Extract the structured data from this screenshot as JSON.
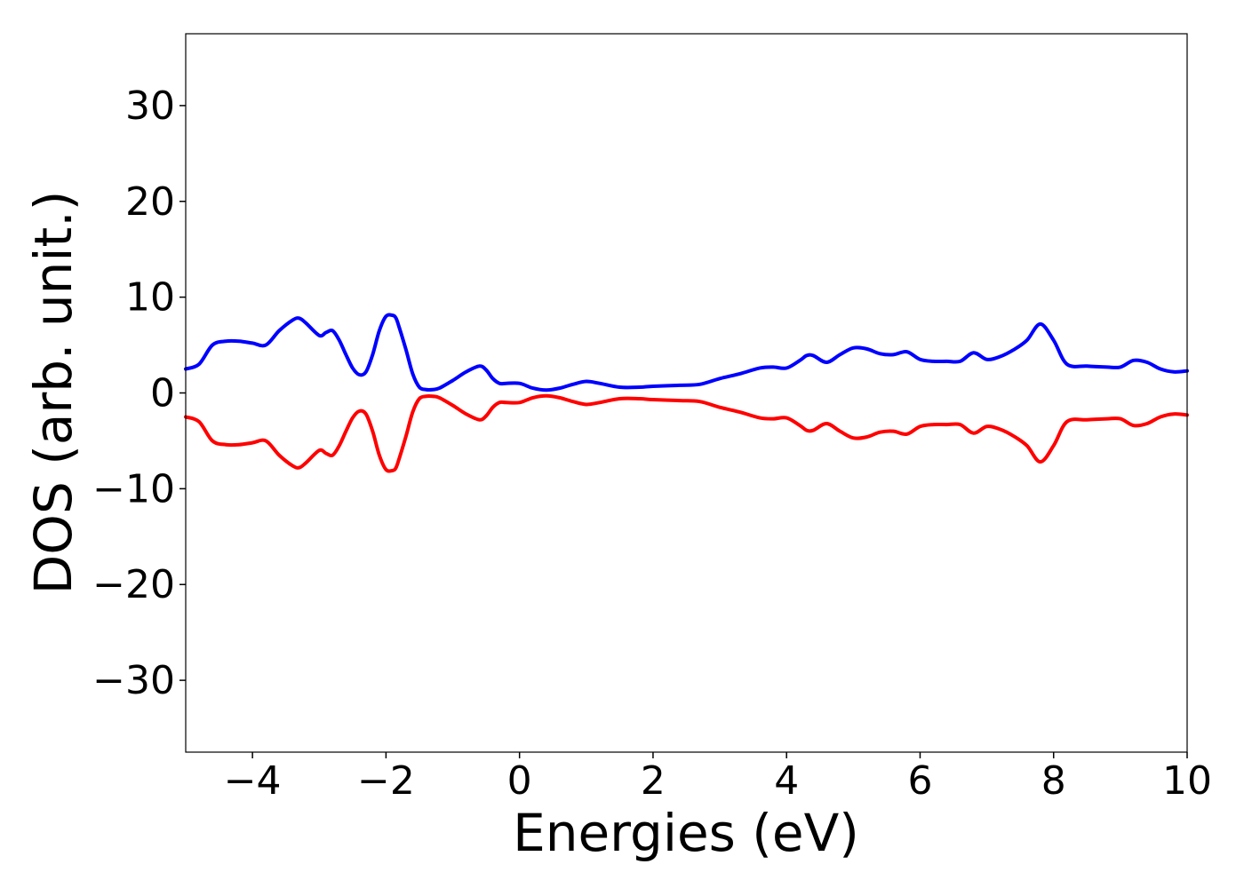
{
  "chart_data": {
    "type": "line",
    "xlabel": "Energies (eV)",
    "ylabel": "DOS (arb. unit.)",
    "xlim": [
      -5,
      10
    ],
    "ylim": [
      -37.5,
      37.5
    ],
    "xticks": [
      -4,
      -2,
      0,
      2,
      4,
      6,
      8,
      10
    ],
    "yticks": [
      -30,
      -20,
      -10,
      0,
      10,
      20,
      30
    ],
    "xtick_labels": [
      "−4",
      "−2",
      "0",
      "2",
      "4",
      "6",
      "8",
      "10"
    ],
    "ytick_labels": [
      "−30",
      "−20",
      "−10",
      "0",
      "10",
      "20",
      "30"
    ],
    "grid": false,
    "series": [
      {
        "color": "#0000ff",
        "x": [
          -5.0,
          -4.8,
          -4.6,
          -4.4,
          -4.2,
          -4.0,
          -3.8,
          -3.6,
          -3.4,
          -3.3,
          -3.2,
          -3.0,
          -2.9,
          -2.8,
          -2.7,
          -2.6,
          -2.5,
          -2.4,
          -2.3,
          -2.2,
          -2.1,
          -2.0,
          -1.9,
          -1.85,
          -1.8,
          -1.7,
          -1.6,
          -1.5,
          -1.4,
          -1.3,
          -1.2,
          -1.0,
          -0.8,
          -0.6,
          -0.5,
          -0.4,
          -0.3,
          -0.2,
          0.0,
          0.2,
          0.4,
          0.6,
          0.8,
          1.0,
          1.2,
          1.5,
          1.8,
          2.0,
          2.4,
          2.7,
          3.0,
          3.3,
          3.6,
          3.8,
          4.0,
          4.2,
          4.3,
          4.4,
          4.6,
          4.8,
          5.0,
          5.2,
          5.4,
          5.6,
          5.8,
          6.0,
          6.2,
          6.4,
          6.6,
          6.8,
          7.0,
          7.2,
          7.4,
          7.6,
          7.8,
          8.0,
          8.2,
          8.5,
          8.8,
          9.0,
          9.2,
          9.4,
          9.6,
          9.8,
          10.0
        ],
        "y": [
          2.5,
          3.0,
          5.0,
          5.4,
          5.4,
          5.2,
          5.0,
          6.5,
          7.6,
          7.8,
          7.3,
          6.0,
          6.3,
          6.5,
          5.5,
          4.0,
          2.6,
          1.9,
          2.2,
          4.0,
          6.5,
          8.0,
          8.1,
          7.8,
          6.8,
          4.5,
          2.0,
          0.6,
          0.35,
          0.35,
          0.5,
          1.3,
          2.2,
          2.8,
          2.4,
          1.5,
          1.0,
          1.0,
          1.0,
          0.5,
          0.3,
          0.5,
          0.9,
          1.2,
          1.0,
          0.6,
          0.6,
          0.7,
          0.8,
          0.9,
          1.5,
          2.0,
          2.6,
          2.7,
          2.6,
          3.4,
          3.9,
          3.9,
          3.2,
          4.0,
          4.7,
          4.6,
          4.1,
          4.0,
          4.3,
          3.5,
          3.3,
          3.3,
          3.3,
          4.2,
          3.5,
          3.8,
          4.5,
          5.5,
          7.2,
          5.5,
          3.0,
          2.8,
          2.7,
          2.7,
          3.4,
          3.2,
          2.5,
          2.2,
          2.3
        ]
      },
      {
        "color": "#ff0000",
        "x": [
          -5.0,
          -4.8,
          -4.6,
          -4.4,
          -4.2,
          -4.0,
          -3.8,
          -3.6,
          -3.4,
          -3.3,
          -3.2,
          -3.0,
          -2.9,
          -2.8,
          -2.7,
          -2.6,
          -2.5,
          -2.4,
          -2.3,
          -2.2,
          -2.1,
          -2.0,
          -1.9,
          -1.85,
          -1.8,
          -1.7,
          -1.6,
          -1.5,
          -1.4,
          -1.3,
          -1.2,
          -1.0,
          -0.8,
          -0.6,
          -0.5,
          -0.4,
          -0.3,
          -0.2,
          0.0,
          0.2,
          0.4,
          0.6,
          0.8,
          1.0,
          1.2,
          1.5,
          1.8,
          2.0,
          2.4,
          2.7,
          3.0,
          3.3,
          3.6,
          3.8,
          4.0,
          4.2,
          4.3,
          4.4,
          4.6,
          4.8,
          5.0,
          5.2,
          5.4,
          5.6,
          5.8,
          6.0,
          6.2,
          6.4,
          6.6,
          6.8,
          7.0,
          7.2,
          7.4,
          7.6,
          7.8,
          8.0,
          8.2,
          8.5,
          8.8,
          9.0,
          9.2,
          9.4,
          9.6,
          9.8,
          10.0
        ],
        "y": [
          -2.5,
          -3.0,
          -5.0,
          -5.4,
          -5.4,
          -5.2,
          -5.0,
          -6.5,
          -7.6,
          -7.8,
          -7.3,
          -6.0,
          -6.3,
          -6.5,
          -5.5,
          -4.0,
          -2.6,
          -1.9,
          -2.2,
          -4.0,
          -6.5,
          -8.0,
          -8.1,
          -7.8,
          -6.8,
          -4.5,
          -2.0,
          -0.6,
          -0.35,
          -0.35,
          -0.5,
          -1.3,
          -2.2,
          -2.8,
          -2.4,
          -1.5,
          -1.0,
          -1.0,
          -1.0,
          -0.5,
          -0.3,
          -0.5,
          -0.9,
          -1.2,
          -1.0,
          -0.6,
          -0.6,
          -0.7,
          -0.8,
          -0.9,
          -1.5,
          -2.0,
          -2.6,
          -2.7,
          -2.6,
          -3.4,
          -3.9,
          -3.9,
          -3.2,
          -4.0,
          -4.7,
          -4.6,
          -4.1,
          -4.0,
          -4.3,
          -3.5,
          -3.3,
          -3.3,
          -3.3,
          -4.2,
          -3.5,
          -3.8,
          -4.5,
          -5.5,
          -7.2,
          -5.5,
          -3.0,
          -2.8,
          -2.7,
          -2.7,
          -3.4,
          -3.2,
          -2.5,
          -2.2,
          -2.3
        ]
      }
    ]
  }
}
